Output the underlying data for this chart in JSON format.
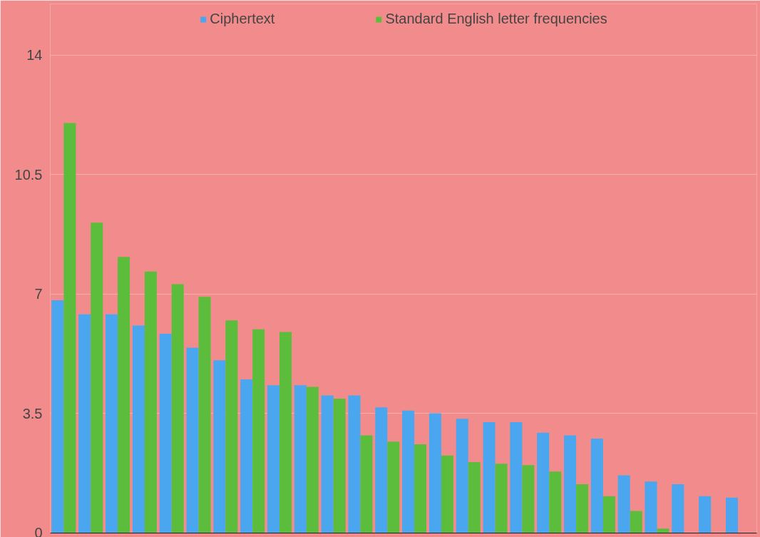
{
  "chart_data": {
    "type": "bar",
    "categories": [
      null,
      null,
      null,
      null,
      null,
      null,
      null,
      null,
      null,
      null,
      null,
      null,
      null,
      null,
      null,
      null,
      null,
      null,
      null,
      null,
      null,
      null,
      null,
      null,
      null,
      null
    ],
    "series": [
      {
        "name": "Ciphertext",
        "color": "#4aa6ee",
        "values": [
          6.82,
          6.41,
          6.41,
          6.08,
          5.84,
          5.43,
          5.06,
          4.5,
          4.33,
          4.33,
          4.03,
          4.03,
          3.68,
          3.59,
          3.51,
          3.35,
          3.25,
          3.25,
          2.94,
          2.86,
          2.77,
          1.69,
          1.51,
          1.43,
          1.08,
          1.04
        ]
      },
      {
        "name": "Standard English letter frequencies",
        "color": "#5cbd3c",
        "values": [
          12.01,
          9.09,
          8.09,
          7.66,
          7.29,
          6.92,
          6.23,
          5.97,
          5.89,
          4.28,
          3.94,
          2.86,
          2.68,
          2.6,
          2.27,
          2.08,
          2.03,
          1.99,
          1.8,
          1.43,
          1.08,
          0.65,
          0.13,
          null,
          null,
          null
        ]
      }
    ],
    "ylim": [
      0,
      15.5
    ],
    "yticks": [
      0,
      3.5,
      7,
      10.5,
      14
    ],
    "grid": "y",
    "legend": "top",
    "tick_labels": "y"
  }
}
